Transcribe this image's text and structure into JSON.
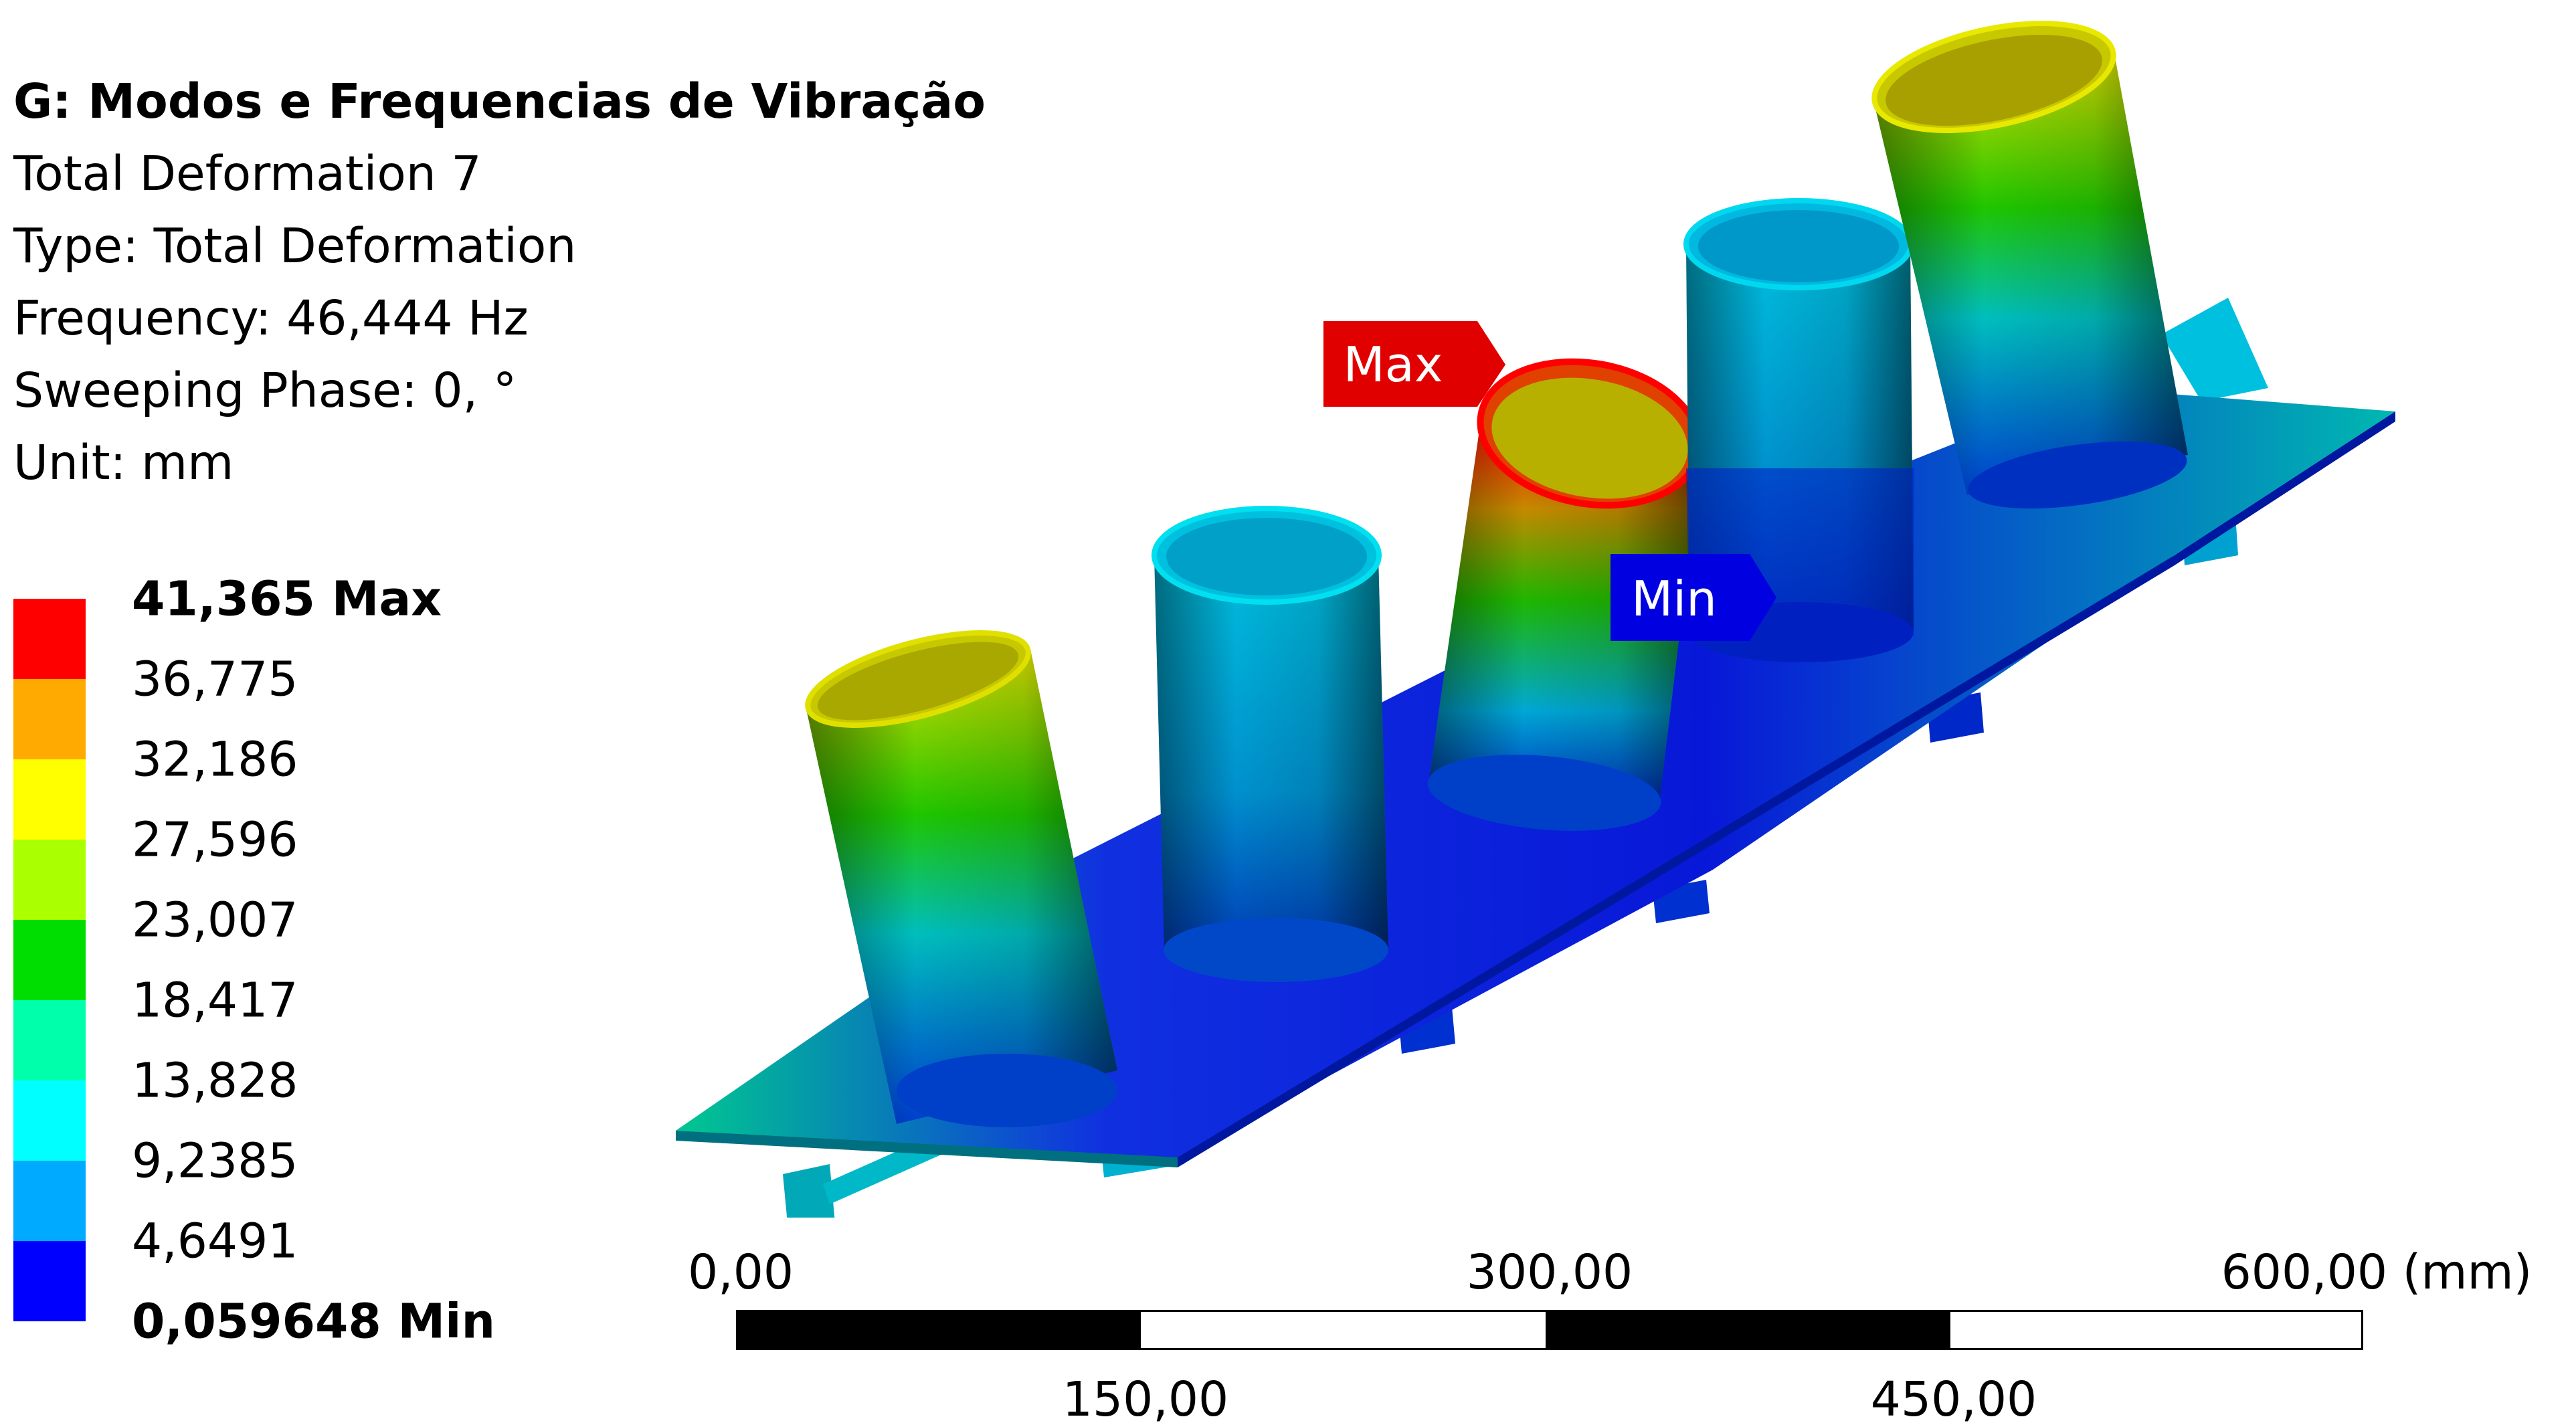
{
  "info": {
    "title": "G: Modos e Frequencias de Vibração",
    "result_name": "Total Deformation 7",
    "type": "Type: Total Deformation",
    "frequency": "Frequency: 46,444 Hz",
    "sweeping_phase": "Sweeping Phase: 0, °",
    "unit": "Unit: mm"
  },
  "legend": {
    "labels": [
      "41,365 Max",
      "36,775",
      "32,186",
      "27,596",
      "23,007",
      "18,417",
      "13,828",
      "9,2385",
      "4,6491",
      "0,059648 Min"
    ],
    "colors": [
      "#FF0000",
      "#FFAA00",
      "#FFFF00",
      "#AAFF00",
      "#00DD00",
      "#00FFAA",
      "#00FFFF",
      "#00AAFF",
      "#0000FF"
    ]
  },
  "probes": {
    "max_label": "Max",
    "max_color": "#E00000",
    "min_label": "Min",
    "min_color": "#0000E0"
  },
  "scale_bar": {
    "top_labels": [
      "0,00",
      "300,00",
      "600,00 (mm)"
    ],
    "bottom_labels": [
      "150,00",
      "450,00"
    ]
  }
}
